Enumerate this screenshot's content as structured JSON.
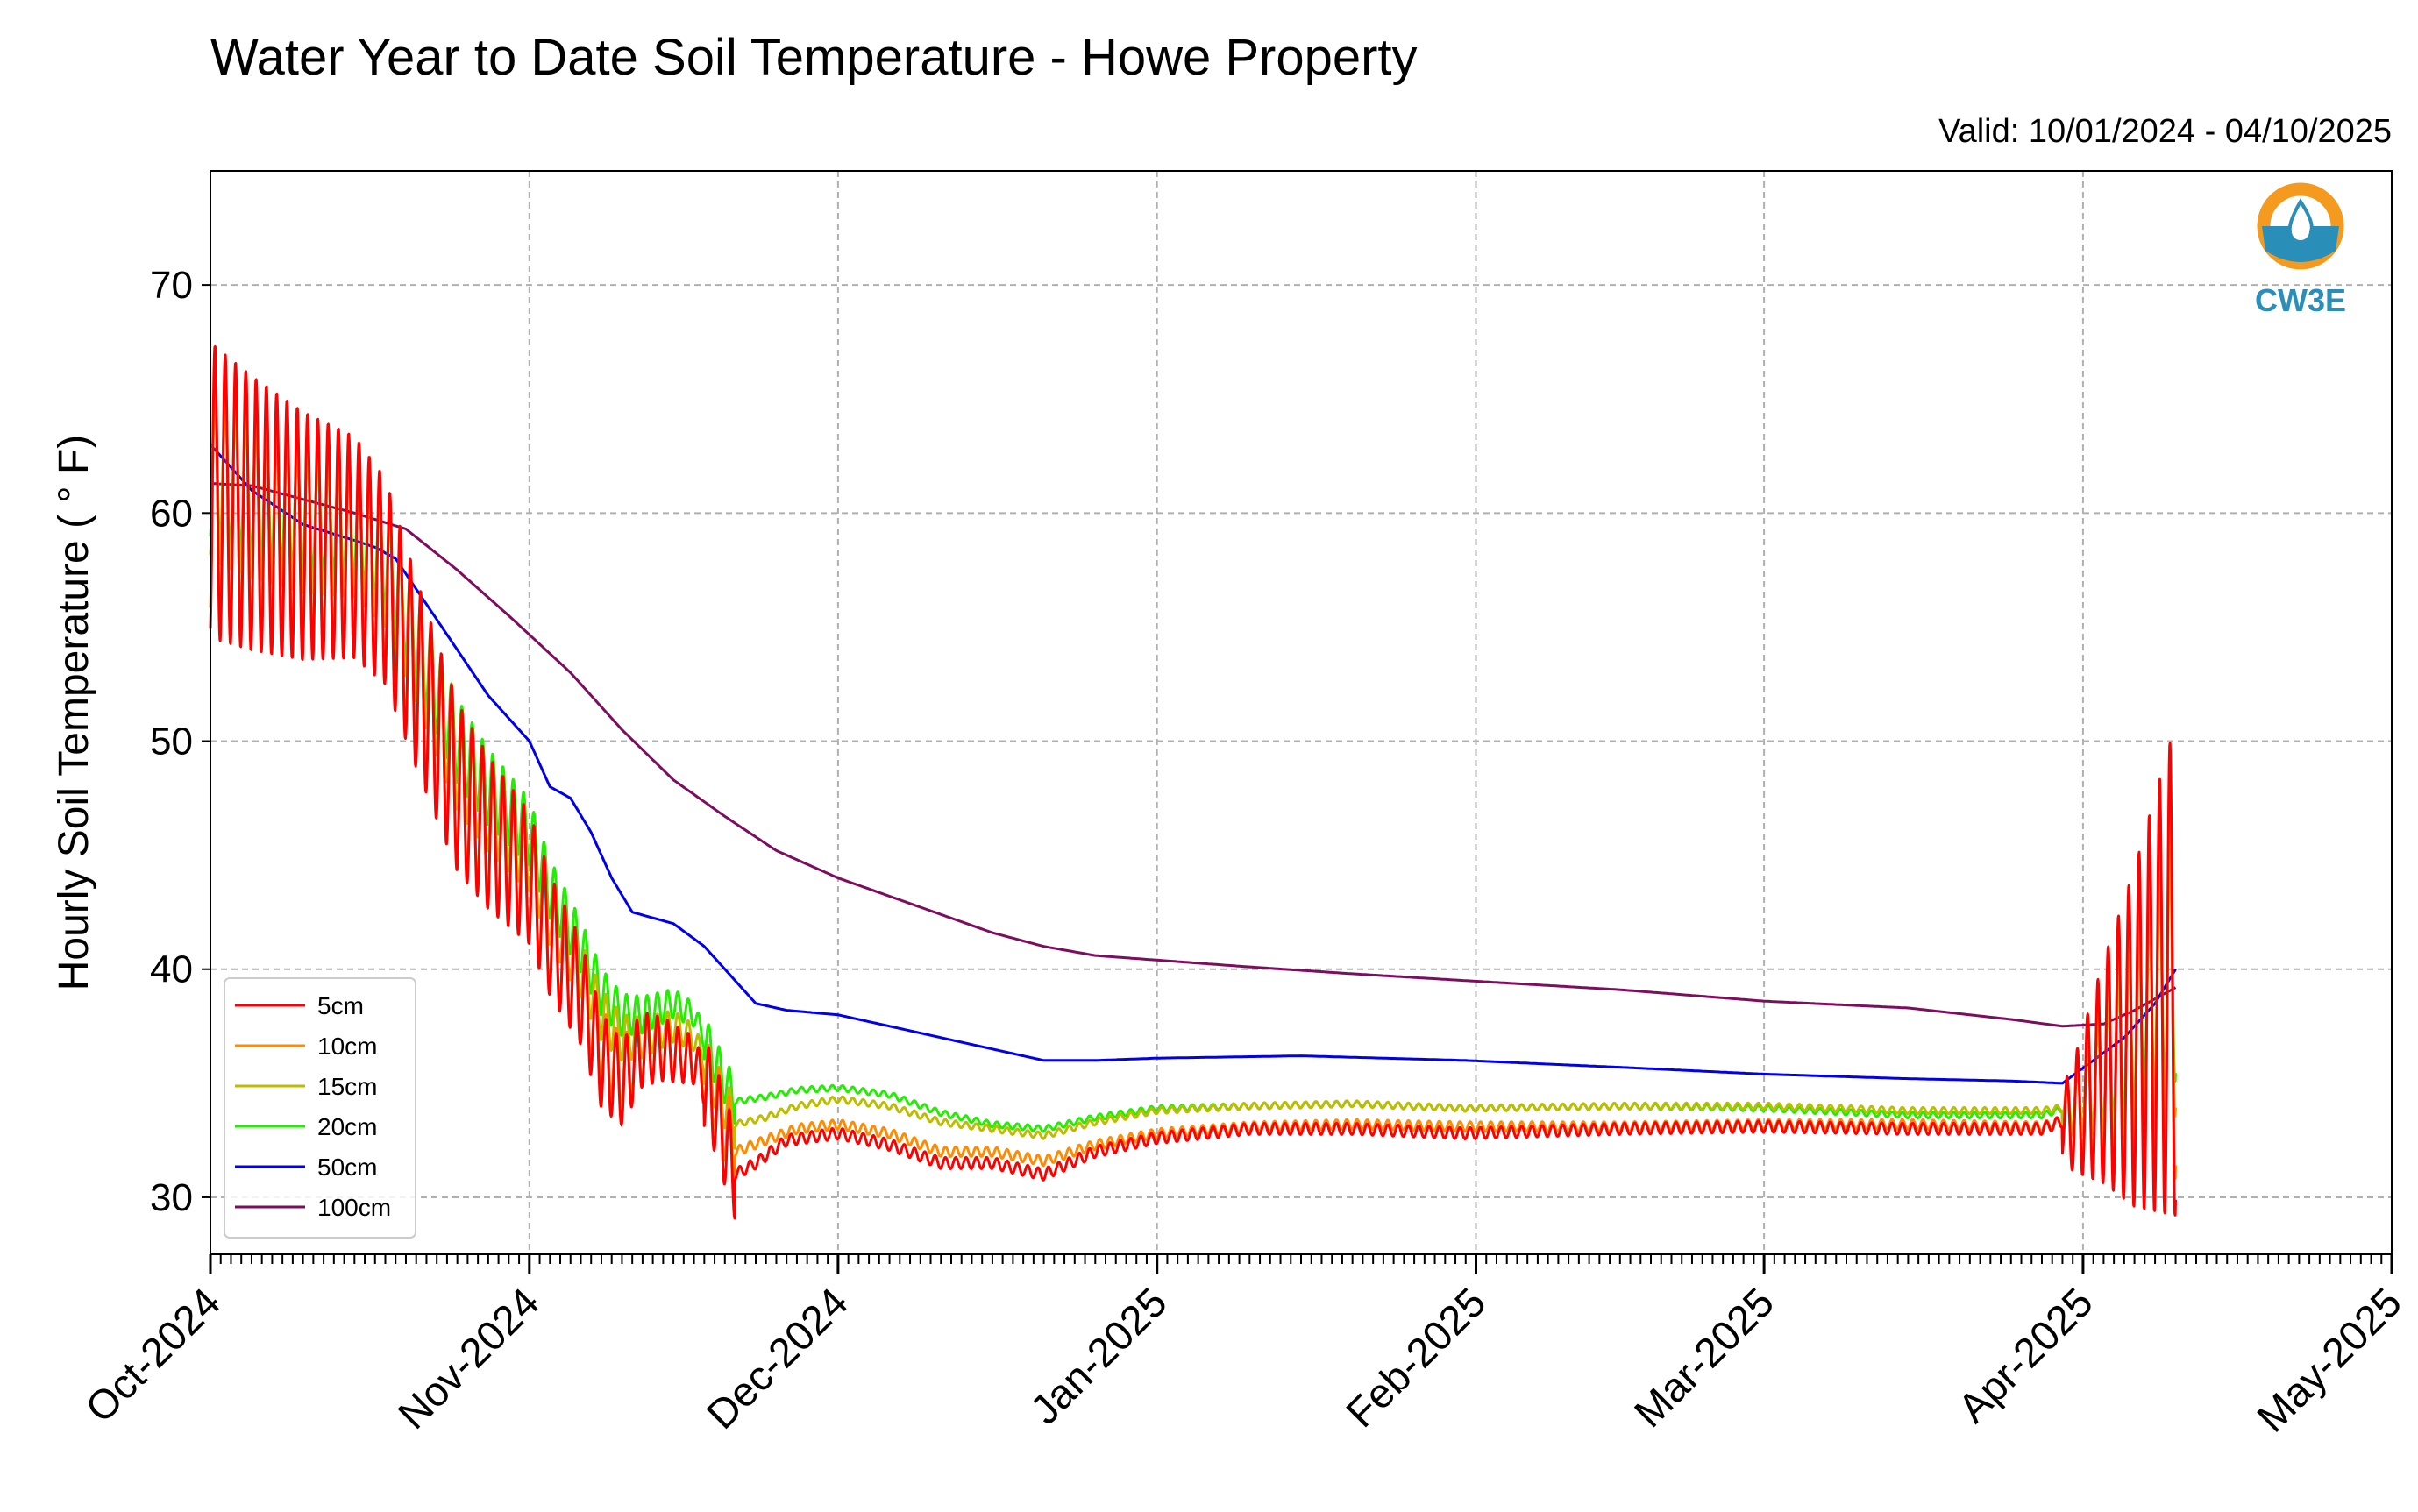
{
  "colors": {
    "5cm": "#ff0000",
    "10cm": "#ff8c00",
    "15cm": "#bcbd00",
    "20cm": "#22ee00",
    "50cm": "#0000ee",
    "100cm": "#7d0d5e",
    "grid": "#b0b0b0",
    "logo_orange": "#f39a1f",
    "logo_blue": "#2a8fb8"
  },
  "logo": {
    "text": "CW3E"
  },
  "chart_data": {
    "type": "line",
    "title": "Water Year to Date Soil Temperature - Howe Property",
    "subtitle": "Valid: 10/01/2024 - 04/10/2025",
    "xlabel": "",
    "ylabel": "Hourly Soil Temperature ( ° F)",
    "xlim": [
      "2024-10-01",
      "2025-05-01"
    ],
    "ylim": [
      27.5,
      75
    ],
    "yticks": [
      30,
      40,
      50,
      60,
      70
    ],
    "xticks": [
      {
        "date": "2024-10-01",
        "label": "Oct-2024"
      },
      {
        "date": "2024-11-01",
        "label": "Nov-2024"
      },
      {
        "date": "2024-12-01",
        "label": "Dec-2024"
      },
      {
        "date": "2025-01-01",
        "label": "Jan-2025"
      },
      {
        "date": "2025-02-01",
        "label": "Feb-2025"
      },
      {
        "date": "2025-03-01",
        "label": "Mar-2025"
      },
      {
        "date": "2025-04-01",
        "label": "Apr-2025"
      },
      {
        "date": "2025-05-01",
        "label": "May-2025"
      }
    ],
    "grid": true,
    "legend_position": "lower-left",
    "series": [
      {
        "name": "5cm",
        "diurnal": true,
        "points": [
          [
            "2024-10-01",
            61
          ],
          [
            "2024-10-05",
            60
          ],
          [
            "2024-10-10",
            59
          ],
          [
            "2024-10-15",
            58.5
          ],
          [
            "2024-10-18",
            57
          ],
          [
            "2024-10-21",
            53
          ],
          [
            "2024-10-25",
            48
          ],
          [
            "2024-10-28",
            46
          ],
          [
            "2024-11-01",
            44
          ],
          [
            "2024-11-03",
            41.5
          ],
          [
            "2024-11-06",
            39
          ],
          [
            "2024-11-08",
            36
          ],
          [
            "2024-11-10",
            35
          ],
          [
            "2024-11-12",
            36.5
          ],
          [
            "2024-11-14",
            36.5
          ],
          [
            "2024-11-17",
            36
          ],
          [
            "2024-11-19",
            34
          ],
          [
            "2024-11-21",
            31
          ],
          [
            "2024-11-23",
            31.5
          ],
          [
            "2024-11-26",
            32.5
          ],
          [
            "2024-12-01",
            32.8
          ],
          [
            "2024-12-06",
            32.3
          ],
          [
            "2024-12-11",
            31.5
          ],
          [
            "2024-12-16",
            31.5
          ],
          [
            "2024-12-21",
            31
          ],
          [
            "2024-12-26",
            32
          ],
          [
            "2025-01-01",
            32.6
          ],
          [
            "2025-01-10",
            33
          ],
          [
            "2025-01-20",
            33
          ],
          [
            "2025-01-31",
            32.8
          ],
          [
            "2025-02-15",
            33
          ],
          [
            "2025-03-01",
            33.1
          ],
          [
            "2025-03-15",
            33
          ],
          [
            "2025-03-28",
            33
          ],
          [
            "2025-03-31",
            33.5
          ],
          [
            "2025-04-03",
            35.5
          ],
          [
            "2025-04-06",
            37
          ],
          [
            "2025-04-10",
            40
          ]
        ]
      },
      {
        "name": "10cm",
        "diurnal": true,
        "points": [
          [
            "2024-10-01",
            61
          ],
          [
            "2024-10-05",
            60
          ],
          [
            "2024-10-10",
            59
          ],
          [
            "2024-10-15",
            58.5
          ],
          [
            "2024-10-18",
            57
          ],
          [
            "2024-10-21",
            53
          ],
          [
            "2024-10-25",
            48
          ],
          [
            "2024-10-28",
            46
          ],
          [
            "2024-11-01",
            44
          ],
          [
            "2024-11-03",
            41.5
          ],
          [
            "2024-11-06",
            39
          ],
          [
            "2024-11-08",
            36.5
          ],
          [
            "2024-11-10",
            35.5
          ],
          [
            "2024-11-12",
            36.5
          ],
          [
            "2024-11-14",
            36.5
          ],
          [
            "2024-11-17",
            36
          ],
          [
            "2024-11-19",
            34.5
          ],
          [
            "2024-11-21",
            32
          ],
          [
            "2024-11-24",
            32.5
          ],
          [
            "2024-11-27",
            33
          ],
          [
            "2024-12-01",
            33.2
          ],
          [
            "2024-12-06",
            32.8
          ],
          [
            "2024-12-11",
            32
          ],
          [
            "2024-12-16",
            32
          ],
          [
            "2024-12-21",
            31.6
          ],
          [
            "2024-12-26",
            32.3
          ],
          [
            "2025-01-01",
            32.8
          ],
          [
            "2025-01-10",
            33.1
          ],
          [
            "2025-01-20",
            33.2
          ],
          [
            "2025-01-31",
            33.1
          ],
          [
            "2025-02-15",
            33.1
          ],
          [
            "2025-03-01",
            33.2
          ],
          [
            "2025-03-15",
            33.2
          ],
          [
            "2025-03-28",
            33.1
          ],
          [
            "2025-03-31",
            33.5
          ],
          [
            "2025-04-03",
            35.5
          ],
          [
            "2025-04-06",
            37
          ],
          [
            "2025-04-10",
            40
          ]
        ]
      },
      {
        "name": "15cm",
        "diurnal": true,
        "points": [
          [
            "2024-10-01",
            61.5
          ],
          [
            "2024-10-05",
            60.5
          ],
          [
            "2024-10-10",
            59.5
          ],
          [
            "2024-10-15",
            59
          ],
          [
            "2024-10-18",
            57.5
          ],
          [
            "2024-10-21",
            54
          ],
          [
            "2024-10-25",
            49
          ],
          [
            "2024-10-28",
            47
          ],
          [
            "2024-11-01",
            45
          ],
          [
            "2024-11-03",
            42.5
          ],
          [
            "2024-11-06",
            40
          ],
          [
            "2024-11-08",
            38
          ],
          [
            "2024-11-10",
            37
          ],
          [
            "2024-11-12",
            37
          ],
          [
            "2024-11-15",
            37.5
          ],
          [
            "2024-11-17",
            37
          ],
          [
            "2024-11-19",
            35
          ],
          [
            "2024-11-21",
            33.2
          ],
          [
            "2024-11-24",
            33.5
          ],
          [
            "2024-11-27",
            34
          ],
          [
            "2024-12-01",
            34.3
          ],
          [
            "2024-12-06",
            34
          ],
          [
            "2024-12-11",
            33.3
          ],
          [
            "2024-12-16",
            33
          ],
          [
            "2024-12-21",
            32.7
          ],
          [
            "2024-12-26",
            33.3
          ],
          [
            "2025-01-01",
            33.8
          ],
          [
            "2025-01-10",
            34
          ],
          [
            "2025-01-20",
            34.1
          ],
          [
            "2025-01-31",
            33.9
          ],
          [
            "2025-02-15",
            34
          ],
          [
            "2025-03-01",
            34
          ],
          [
            "2025-03-15",
            33.8
          ],
          [
            "2025-03-28",
            33.8
          ],
          [
            "2025-03-31",
            34
          ],
          [
            "2025-04-03",
            35.5
          ],
          [
            "2025-04-06",
            37
          ],
          [
            "2025-04-10",
            39.5
          ]
        ]
      },
      {
        "name": "20cm",
        "diurnal": true,
        "points": [
          [
            "2024-10-01",
            62
          ],
          [
            "2024-10-05",
            61
          ],
          [
            "2024-10-10",
            60
          ],
          [
            "2024-10-15",
            59.5
          ],
          [
            "2024-10-18",
            58
          ],
          [
            "2024-10-21",
            54.5
          ],
          [
            "2024-10-25",
            50
          ],
          [
            "2024-10-28",
            48
          ],
          [
            "2024-11-01",
            46
          ],
          [
            "2024-11-03",
            43.5
          ],
          [
            "2024-11-06",
            41
          ],
          [
            "2024-11-08",
            39
          ],
          [
            "2024-11-10",
            38
          ],
          [
            "2024-11-12",
            38
          ],
          [
            "2024-11-15",
            38.5
          ],
          [
            "2024-11-17",
            38
          ],
          [
            "2024-11-19",
            36
          ],
          [
            "2024-11-21",
            34.2
          ],
          [
            "2024-11-24",
            34.4
          ],
          [
            "2024-11-27",
            34.7
          ],
          [
            "2024-12-01",
            34.8
          ],
          [
            "2024-12-06",
            34.5
          ],
          [
            "2024-12-11",
            33.7
          ],
          [
            "2024-12-16",
            33.2
          ],
          [
            "2024-12-21",
            33
          ],
          [
            "2024-12-26",
            33.5
          ],
          [
            "2025-01-01",
            33.9
          ],
          [
            "2025-01-10",
            34
          ],
          [
            "2025-01-20",
            34.1
          ],
          [
            "2025-01-31",
            33.9
          ],
          [
            "2025-02-15",
            34
          ],
          [
            "2025-03-01",
            33.9
          ],
          [
            "2025-03-15",
            33.6
          ],
          [
            "2025-03-28",
            33.6
          ],
          [
            "2025-03-31",
            34
          ],
          [
            "2025-04-03",
            35.5
          ],
          [
            "2025-04-06",
            37.5
          ],
          [
            "2025-04-10",
            40.5
          ]
        ]
      },
      {
        "name": "50cm",
        "diurnal": false,
        "points": [
          [
            "2024-10-01",
            63
          ],
          [
            "2024-10-05",
            61
          ],
          [
            "2024-10-10",
            59.5
          ],
          [
            "2024-10-15",
            58.8
          ],
          [
            "2024-10-17",
            58.5
          ],
          [
            "2024-10-19",
            58
          ],
          [
            "2024-10-22",
            56
          ],
          [
            "2024-10-25",
            54
          ],
          [
            "2024-10-28",
            52
          ],
          [
            "2024-11-01",
            50
          ],
          [
            "2024-11-03",
            48
          ],
          [
            "2024-11-05",
            47.5
          ],
          [
            "2024-11-07",
            46
          ],
          [
            "2024-11-09",
            44
          ],
          [
            "2024-11-11",
            42.5
          ],
          [
            "2024-11-15",
            42
          ],
          [
            "2024-11-18",
            41
          ],
          [
            "2024-11-21",
            39.5
          ],
          [
            "2024-11-23",
            38.5
          ],
          [
            "2024-11-26",
            38.2
          ],
          [
            "2024-12-01",
            38
          ],
          [
            "2024-12-06",
            37.5
          ],
          [
            "2024-12-11",
            37
          ],
          [
            "2024-12-16",
            36.5
          ],
          [
            "2024-12-21",
            36
          ],
          [
            "2024-12-26",
            36
          ],
          [
            "2025-01-01",
            36.1
          ],
          [
            "2025-01-15",
            36.2
          ],
          [
            "2025-01-31",
            36
          ],
          [
            "2025-02-15",
            35.7
          ],
          [
            "2025-03-01",
            35.4
          ],
          [
            "2025-03-15",
            35.2
          ],
          [
            "2025-03-25",
            35.1
          ],
          [
            "2025-03-30",
            35
          ],
          [
            "2025-04-02",
            36
          ],
          [
            "2025-04-05",
            37
          ],
          [
            "2025-04-08",
            38.5
          ],
          [
            "2025-04-10",
            40
          ]
        ]
      },
      {
        "name": "100cm",
        "diurnal": false,
        "points": [
          [
            "2024-10-01",
            61.3
          ],
          [
            "2024-10-05",
            61.2
          ],
          [
            "2024-10-10",
            60.6
          ],
          [
            "2024-10-15",
            60
          ],
          [
            "2024-10-20",
            59.3
          ],
          [
            "2024-10-25",
            57.5
          ],
          [
            "2024-10-30",
            55.5
          ],
          [
            "2024-11-05",
            53
          ],
          [
            "2024-11-10",
            50.5
          ],
          [
            "2024-11-15",
            48.3
          ],
          [
            "2024-11-20",
            46.7
          ],
          [
            "2024-11-25",
            45.2
          ],
          [
            "2024-12-01",
            44
          ],
          [
            "2024-12-06",
            43.2
          ],
          [
            "2024-12-11",
            42.4
          ],
          [
            "2024-12-16",
            41.6
          ],
          [
            "2024-12-21",
            41
          ],
          [
            "2024-12-26",
            40.6
          ],
          [
            "2025-01-01",
            40.4
          ],
          [
            "2025-01-10",
            40.1
          ],
          [
            "2025-01-20",
            39.8
          ],
          [
            "2025-01-31",
            39.5
          ],
          [
            "2025-02-15",
            39.1
          ],
          [
            "2025-03-01",
            38.6
          ],
          [
            "2025-03-15",
            38.3
          ],
          [
            "2025-03-25",
            37.8
          ],
          [
            "2025-03-30",
            37.5
          ],
          [
            "2025-04-03",
            37.6
          ],
          [
            "2025-04-06",
            38.2
          ],
          [
            "2025-04-10",
            39.2
          ]
        ]
      }
    ]
  }
}
